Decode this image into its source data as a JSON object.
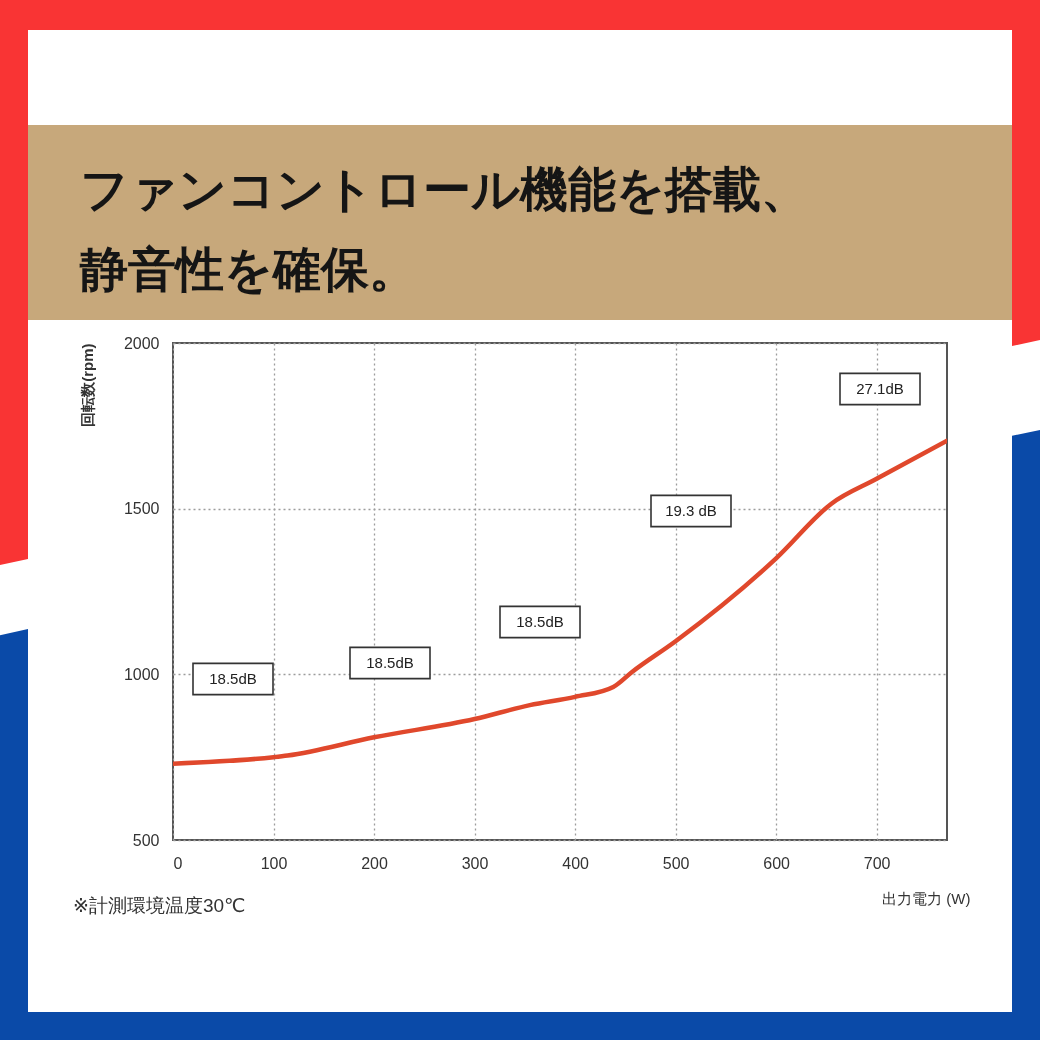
{
  "chart_data": {
    "type": "line",
    "title": "ファンコントロール機能を搭載、静音性を確保。",
    "xlabel": "出力電力 (W)",
    "ylabel": "回転数(rpm)",
    "x": [
      0,
      100,
      114,
      200,
      300,
      355,
      400,
      438,
      457,
      500,
      600,
      655,
      700,
      770
    ],
    "values": [
      730,
      750,
      755,
      810,
      865,
      907,
      932,
      962,
      1008,
      1100,
      1350,
      1515,
      1590,
      1705
    ],
    "color": "#e0482c",
    "xlim": [
      0,
      770
    ],
    "xticks": [
      0,
      100,
      200,
      300,
      400,
      500,
      600,
      700
    ],
    "ylim": [
      500,
      2000
    ],
    "yticks": [
      500,
      1000,
      1500,
      2000
    ],
    "grid": true,
    "annotations": [
      "18.5dB",
      "18.5dB",
      "18.5dB",
      "19.3 dB",
      "27.1dB",
      "※計測環境温度30℃"
    ]
  }
}
